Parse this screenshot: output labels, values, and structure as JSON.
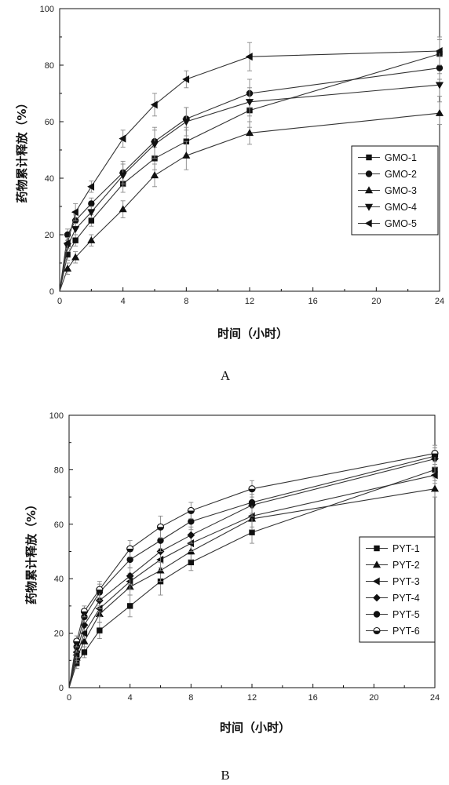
{
  "chart_data": [
    {
      "type": "line",
      "panel_label": "A",
      "title": "",
      "xlabel": "时间（小时）",
      "ylabel": "药物累计释放（%）",
      "xlim": [
        0,
        24
      ],
      "ylim": [
        0,
        100
      ],
      "xticks": [
        0,
        4,
        8,
        12,
        16,
        20,
        24
      ],
      "yticks": [
        0,
        20,
        40,
        60,
        80,
        100
      ],
      "grid": false,
      "error_bars": true,
      "legend_position": "right",
      "x": [
        0,
        0.5,
        1,
        2,
        4,
        6,
        8,
        12,
        24
      ],
      "series": [
        {
          "name": "GMO-1",
          "marker": "square",
          "values": [
            0,
            13,
            18,
            25,
            38,
            47,
            53,
            64,
            84
          ],
          "errors": [
            0,
            2,
            2,
            2,
            3,
            4,
            5,
            6,
            5
          ]
        },
        {
          "name": "GMO-2",
          "marker": "circle",
          "values": [
            0,
            20,
            25,
            31,
            42,
            53,
            61,
            70,
            79
          ],
          "errors": [
            0,
            2,
            2,
            2,
            4,
            5,
            4,
            5,
            4
          ]
        },
        {
          "name": "GMO-3",
          "marker": "triangle-up",
          "values": [
            0,
            8,
            12,
            18,
            29,
            41,
            48,
            56,
            63
          ],
          "errors": [
            0,
            2,
            2,
            2,
            3,
            4,
            5,
            4,
            4
          ]
        },
        {
          "name": "GMO-4",
          "marker": "triangle-down",
          "values": [
            0,
            16,
            22,
            28,
            41,
            52,
            60,
            67,
            73
          ],
          "errors": [
            0,
            2,
            2,
            2,
            4,
            5,
            5,
            5,
            4
          ]
        },
        {
          "name": "GMO-5",
          "marker": "triangle-left",
          "values": [
            0,
            17,
            28,
            37,
            54,
            66,
            75,
            83,
            85
          ],
          "errors": [
            0,
            2,
            3,
            2,
            3,
            4,
            3,
            5,
            5
          ]
        }
      ]
    },
    {
      "type": "line",
      "panel_label": "B",
      "title": "",
      "xlabel": "时间（小时）",
      "ylabel": "药物累计释放（%）",
      "xlim": [
        0,
        24
      ],
      "ylim": [
        0,
        100
      ],
      "xticks": [
        0,
        4,
        8,
        12,
        16,
        20,
        24
      ],
      "yticks": [
        0,
        20,
        40,
        60,
        80,
        100
      ],
      "grid": false,
      "error_bars": true,
      "legend_position": "right",
      "x": [
        0,
        0.5,
        1,
        2,
        4,
        6,
        8,
        12,
        24
      ],
      "series": [
        {
          "name": "PYT-1",
          "marker": "square",
          "values": [
            0,
            9,
            13,
            21,
            30,
            39,
            46,
            57,
            80
          ],
          "errors": [
            0,
            2,
            2,
            3,
            4,
            5,
            3,
            4,
            3
          ]
        },
        {
          "name": "PYT-2",
          "marker": "triangle-up",
          "values": [
            0,
            11,
            17,
            27,
            37,
            43,
            50,
            62,
            73
          ],
          "errors": [
            0,
            2,
            2,
            3,
            3,
            4,
            3,
            4,
            3
          ]
        },
        {
          "name": "PYT-3",
          "marker": "triangle-left",
          "values": [
            0,
            12,
            20,
            29,
            39,
            47,
            53,
            63,
            78
          ],
          "errors": [
            0,
            2,
            2,
            3,
            3,
            4,
            3,
            4,
            3
          ]
        },
        {
          "name": "PYT-4",
          "marker": "diamond",
          "values": [
            0,
            13,
            23,
            32,
            41,
            50,
            56,
            67,
            84
          ],
          "errors": [
            0,
            2,
            2,
            3,
            3,
            4,
            3,
            4,
            3
          ]
        },
        {
          "name": "PYT-5",
          "marker": "circle",
          "values": [
            0,
            15,
            26,
            35,
            47,
            54,
            61,
            68,
            85
          ],
          "errors": [
            0,
            2,
            2,
            3,
            3,
            4,
            3,
            4,
            3
          ]
        },
        {
          "name": "PYT-6",
          "marker": "half-circle",
          "values": [
            0,
            17,
            28,
            36,
            51,
            59,
            65,
            73,
            86
          ],
          "errors": [
            0,
            2,
            2,
            3,
            3,
            4,
            3,
            3,
            3
          ]
        }
      ]
    }
  ]
}
